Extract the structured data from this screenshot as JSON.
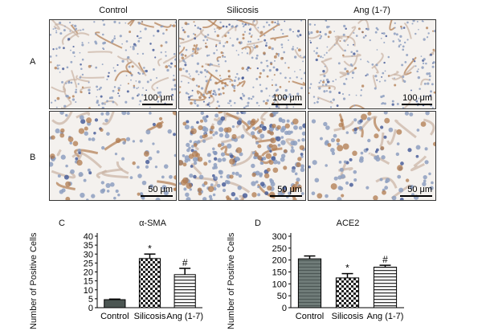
{
  "columns": [
    "Control",
    "Silicosis",
    "Ang (1-7)"
  ],
  "rows": [
    "A",
    "B"
  ],
  "scalebars": [
    [
      "100 μm",
      "100 μm",
      "100 μm"
    ],
    [
      "50 μm",
      "50 μm",
      "50 μm"
    ]
  ],
  "colors": {
    "tissue_blue": "#8d9fbf",
    "stain_brown": "#b07a4e",
    "background": "#f4f1ee"
  },
  "chart_data": [
    {
      "panel": "C",
      "type": "bar",
      "title": "α-SMA",
      "ylabel": "Number of Positive Cells",
      "categories": [
        "Control",
        "Silicosis",
        "Ang (1-7)"
      ],
      "values": [
        4.5,
        27.5,
        18.5
      ],
      "errors": [
        0.3,
        2.5,
        3.5
      ],
      "annotations": [
        "",
        "*",
        "#"
      ],
      "ylim": [
        0,
        40
      ],
      "yticks": [
        "0",
        "5",
        "10",
        "15",
        "20",
        "25",
        "30",
        "35",
        "40"
      ],
      "patterns": [
        "solid-dark",
        "checker",
        "hstripes"
      ]
    },
    {
      "panel": "D",
      "type": "bar",
      "title": "ACE2",
      "ylabel": "Number of Positive Cells",
      "categories": [
        "Control",
        "Silicosis",
        "Ang (1-7)"
      ],
      "values": [
        205,
        125,
        170
      ],
      "errors": [
        12,
        18,
        8
      ],
      "annotations": [
        "",
        "*",
        "#"
      ],
      "ylim": [
        0,
        300
      ],
      "yticks": [
        "0",
        "50",
        "100",
        "150",
        "200",
        "250",
        "300"
      ],
      "patterns": [
        "gradient-stripes",
        "checker",
        "hstripes"
      ]
    }
  ]
}
